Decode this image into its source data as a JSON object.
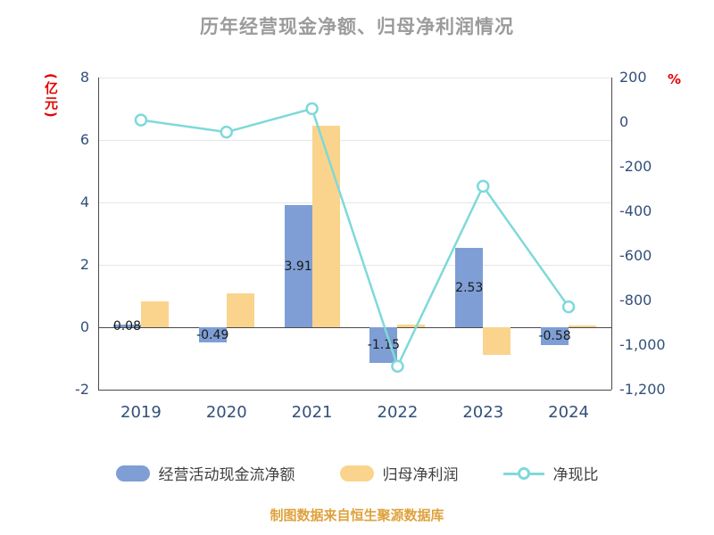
{
  "title": "历年经营现金净额、归母净利润情况",
  "footer": "制图数据来自恒生聚源数据库",
  "colors": {
    "title": "#9B9B9B",
    "axis_unit_label": "#E60000",
    "tick_label": "#33507A",
    "bar_cashflow": "#7E9ED5",
    "bar_netprofit": "#FAD48C",
    "line_netcash_ratio": "#7FD9D9",
    "grid": "#E6E6E6",
    "axis_line": "#4A4A4A",
    "footer": "#DFA23C"
  },
  "chart_data": {
    "type": "bar",
    "subtype": "combo-bar-line",
    "categories": [
      "2019",
      "2020",
      "2021",
      "2022",
      "2023",
      "2024"
    ],
    "series": [
      {
        "key": "cashflow",
        "name": "经营活动现金流净额",
        "type": "bar",
        "axis": "left",
        "color": "#7E9ED5",
        "values": [
          0.08,
          -0.49,
          3.91,
          -1.15,
          2.53,
          -0.58
        ],
        "labels": [
          "0.08",
          "-0.49",
          "3.91",
          "-1.15",
          "2.53",
          "-0.58"
        ]
      },
      {
        "key": "netprofit",
        "name": "归母净利润",
        "type": "bar",
        "axis": "left",
        "color": "#FAD48C",
        "values": [
          0.83,
          1.1,
          6.46,
          0.1,
          -0.88,
          0.07
        ]
      },
      {
        "key": "netcash-ratio",
        "name": "净现比",
        "type": "line",
        "axis": "right",
        "color": "#7FD9D9",
        "values": [
          9.6,
          -44.5,
          60.5,
          -1095.0,
          -287.5,
          -828.6
        ]
      }
    ],
    "left_axis": {
      "label": "(亿元)",
      "min": -2,
      "max": 8,
      "tick_values": [
        8,
        6,
        4,
        2,
        0,
        -2
      ],
      "tick_labels": [
        "8",
        "6",
        "4",
        "2",
        "0",
        "-2"
      ]
    },
    "right_axis": {
      "label": "%",
      "min": -1200,
      "max": 200,
      "tick_values": [
        200,
        0,
        -200,
        -400,
        -600,
        -800,
        -1000,
        -1200
      ],
      "tick_labels": [
        "200",
        "0",
        "-200",
        "-400",
        "-600",
        "-800",
        "-1,000",
        "-1,200"
      ]
    },
    "grid": true,
    "legend_position": "bottom"
  }
}
